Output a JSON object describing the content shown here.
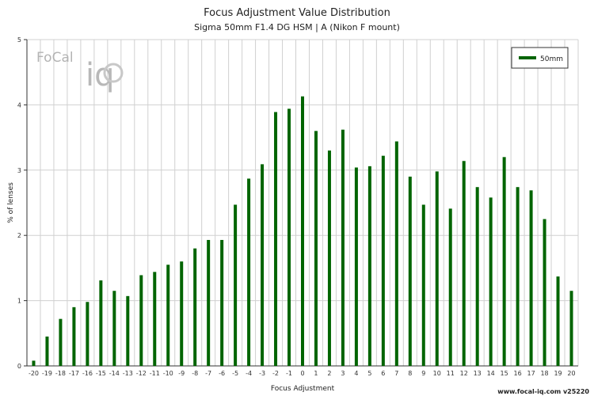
{
  "chart_data": {
    "type": "bar",
    "title": "Focus Adjustment Value Distribution",
    "subtitle": "Sigma 50mm F1.4 DG HSM | A (Nikon F mount)",
    "xlabel": "Focus Adjustment",
    "ylabel": "% of lenses",
    "ylim": [
      0,
      5
    ],
    "yticks": [
      0,
      1,
      2,
      3,
      4,
      5
    ],
    "grid": true,
    "legend_position": "top-right",
    "categories": [
      "-20",
      "-19",
      "-18",
      "-17",
      "-16",
      "-15",
      "-14",
      "-13",
      "-12",
      "-11",
      "-10",
      "-9",
      "-8",
      "-7",
      "-6",
      "-5",
      "-4",
      "-3",
      "-2",
      "-1",
      "0",
      "1",
      "2",
      "3",
      "4",
      "5",
      "6",
      "7",
      "8",
      "9",
      "10",
      "11",
      "12",
      "13",
      "14",
      "15",
      "16",
      "17",
      "18",
      "19",
      "20"
    ],
    "series": [
      {
        "name": "50mm",
        "color": "#006400",
        "values": [
          0.08,
          0.45,
          0.72,
          0.9,
          0.98,
          1.31,
          1.15,
          1.07,
          1.39,
          1.44,
          1.55,
          1.6,
          1.8,
          1.93,
          1.93,
          2.47,
          2.87,
          3.09,
          3.89,
          3.94,
          4.13,
          3.6,
          3.3,
          3.62,
          3.04,
          3.06,
          3.22,
          3.44,
          2.9,
          2.47,
          2.98,
          2.41,
          3.14,
          2.74,
          2.58,
          3.2,
          2.74,
          2.69,
          2.25,
          1.37,
          1.15
        ]
      }
    ]
  },
  "logo": {
    "text": "FoCal iQ",
    "color": "#aaaaaa"
  },
  "footer": {
    "text": "www.focal-iq.com  v25220"
  }
}
